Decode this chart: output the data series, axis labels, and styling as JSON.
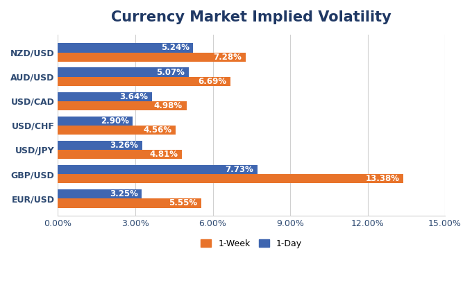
{
  "title": "Currency Market Implied Volatility",
  "categories": [
    "NZD/USD",
    "AUD/USD",
    "USD/CAD",
    "USD/CHF",
    "USD/JPY",
    "GBP/USD",
    "EUR/USD"
  ],
  "week1_values": [
    7.28,
    6.69,
    4.98,
    4.56,
    4.81,
    13.38,
    5.55
  ],
  "day1_values": [
    5.24,
    5.07,
    3.64,
    2.9,
    3.26,
    7.73,
    3.25
  ],
  "week1_color": "#E8732A",
  "day1_color": "#3F66B0",
  "bar_height": 0.38,
  "xlim": [
    0,
    15.0
  ],
  "xticks": [
    0,
    3,
    6,
    9,
    12,
    15
  ],
  "xtick_labels": [
    "0.00%",
    "3.00%",
    "6.00%",
    "9.00%",
    "12.00%",
    "15.00%"
  ],
  "title_fontsize": 15,
  "label_fontsize": 8.5,
  "tick_fontsize": 9,
  "ylabel_color": "#2E4A72",
  "title_color": "#1F3864",
  "background_color": "#FFFFFF",
  "legend_labels": [
    "1-Week",
    "1-Day"
  ],
  "grid_color": "#D0D0D0",
  "label_color_white": "#FFFFFF"
}
